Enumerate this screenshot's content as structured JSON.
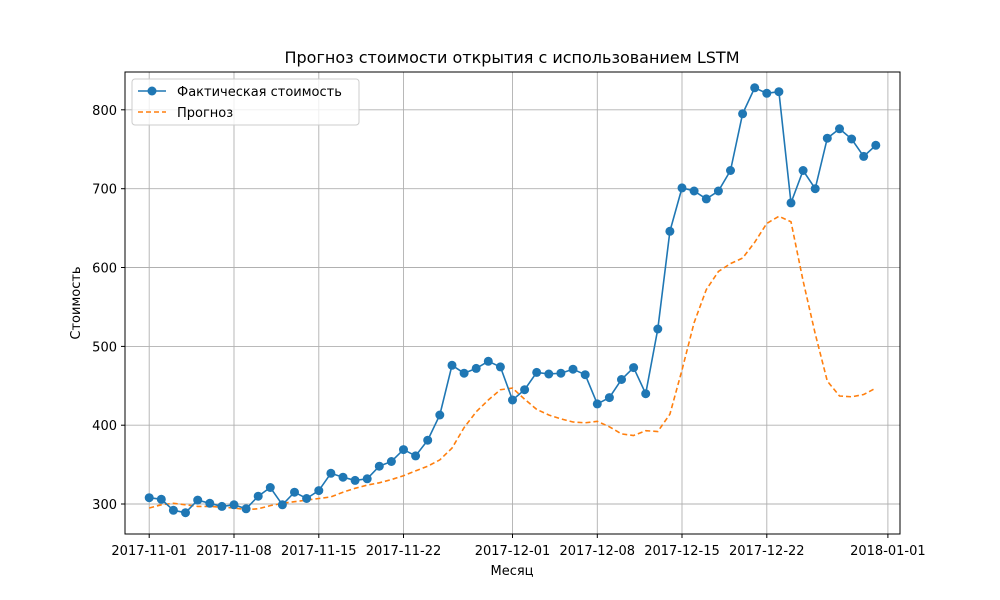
{
  "chart_data": {
    "type": "line",
    "title": "Прогноз стоимости открытия с использованием LSTM",
    "xlabel": "Месяц",
    "ylabel": "Стоимость",
    "grid": true,
    "legend_position": "top-left",
    "xlim": [
      "2017-10-30",
      "2018-01-02"
    ],
    "ylim": [
      262,
      848
    ],
    "x_ticks": [
      "2017-11-01",
      "2017-11-08",
      "2017-11-15",
      "2017-11-22",
      "2017-12-01",
      "2017-12-08",
      "2017-12-15",
      "2017-12-22",
      "2018-01-01"
    ],
    "y_ticks": [
      300,
      400,
      500,
      600,
      700,
      800
    ],
    "series": [
      {
        "name": "Фактическая стоимость",
        "color": "#1f77b4",
        "style": "solid-marker",
        "points": [
          [
            "2017-11-01",
            308
          ],
          [
            "2017-11-02",
            306
          ],
          [
            "2017-11-03",
            292
          ],
          [
            "2017-11-04",
            289
          ],
          [
            "2017-11-05",
            305
          ],
          [
            "2017-11-06",
            301
          ],
          [
            "2017-11-07",
            297
          ],
          [
            "2017-11-08",
            299
          ],
          [
            "2017-11-09",
            294
          ],
          [
            "2017-11-10",
            310
          ],
          [
            "2017-11-11",
            321
          ],
          [
            "2017-11-12",
            299
          ],
          [
            "2017-11-13",
            315
          ],
          [
            "2017-11-14",
            307
          ],
          [
            "2017-11-15",
            317
          ],
          [
            "2017-11-16",
            339
          ],
          [
            "2017-11-17",
            334
          ],
          [
            "2017-11-18",
            330
          ],
          [
            "2017-11-19",
            332
          ],
          [
            "2017-11-20",
            348
          ],
          [
            "2017-11-21",
            354
          ],
          [
            "2017-11-22",
            369
          ],
          [
            "2017-11-23",
            361
          ],
          [
            "2017-11-24",
            381
          ],
          [
            "2017-11-25",
            413
          ],
          [
            "2017-11-26",
            476
          ],
          [
            "2017-11-27",
            466
          ],
          [
            "2017-11-28",
            472
          ],
          [
            "2017-11-29",
            481
          ],
          [
            "2017-11-30",
            474
          ],
          [
            "2017-12-01",
            432
          ],
          [
            "2017-12-02",
            445
          ],
          [
            "2017-12-03",
            467
          ],
          [
            "2017-12-04",
            465
          ],
          [
            "2017-12-05",
            466
          ],
          [
            "2017-12-06",
            471
          ],
          [
            "2017-12-07",
            464
          ],
          [
            "2017-12-08",
            427
          ],
          [
            "2017-12-09",
            435
          ],
          [
            "2017-12-10",
            458
          ],
          [
            "2017-12-11",
            473
          ],
          [
            "2017-12-12",
            440
          ],
          [
            "2017-12-13",
            522
          ],
          [
            "2017-12-14",
            646
          ],
          [
            "2017-12-15",
            701
          ],
          [
            "2017-12-16",
            697
          ],
          [
            "2017-12-17",
            687
          ],
          [
            "2017-12-18",
            697
          ],
          [
            "2017-12-19",
            723
          ],
          [
            "2017-12-20",
            795
          ],
          [
            "2017-12-21",
            828
          ],
          [
            "2017-12-22",
            821
          ],
          [
            "2017-12-23",
            823
          ],
          [
            "2017-12-24",
            682
          ],
          [
            "2017-12-25",
            723
          ],
          [
            "2017-12-26",
            700
          ],
          [
            "2017-12-27",
            764
          ],
          [
            "2017-12-28",
            776
          ],
          [
            "2017-12-29",
            763
          ],
          [
            "2017-12-30",
            741
          ],
          [
            "2017-12-31",
            755
          ]
        ]
      },
      {
        "name": "Прогноз",
        "color": "#ff7f0e",
        "style": "dashed",
        "points": [
          [
            "2017-11-01",
            295
          ],
          [
            "2017-11-02",
            299
          ],
          [
            "2017-11-03",
            301
          ],
          [
            "2017-11-04",
            299
          ],
          [
            "2017-11-05",
            297
          ],
          [
            "2017-11-06",
            297
          ],
          [
            "2017-11-07",
            296
          ],
          [
            "2017-11-08",
            295
          ],
          [
            "2017-11-09",
            293
          ],
          [
            "2017-11-10",
            294
          ],
          [
            "2017-11-11",
            298
          ],
          [
            "2017-11-12",
            301
          ],
          [
            "2017-11-13",
            303
          ],
          [
            "2017-11-14",
            305
          ],
          [
            "2017-11-15",
            307
          ],
          [
            "2017-11-16",
            309
          ],
          [
            "2017-11-17",
            315
          ],
          [
            "2017-11-18",
            320
          ],
          [
            "2017-11-19",
            324
          ],
          [
            "2017-11-20",
            327
          ],
          [
            "2017-11-21",
            331
          ],
          [
            "2017-11-22",
            336
          ],
          [
            "2017-11-23",
            342
          ],
          [
            "2017-11-24",
            348
          ],
          [
            "2017-11-25",
            356
          ],
          [
            "2017-11-26",
            371
          ],
          [
            "2017-11-27",
            397
          ],
          [
            "2017-11-28",
            417
          ],
          [
            "2017-11-29",
            432
          ],
          [
            "2017-11-30",
            445
          ],
          [
            "2017-12-01",
            447
          ],
          [
            "2017-12-02",
            433
          ],
          [
            "2017-12-03",
            420
          ],
          [
            "2017-12-04",
            413
          ],
          [
            "2017-12-05",
            408
          ],
          [
            "2017-12-06",
            404
          ],
          [
            "2017-12-07",
            403
          ],
          [
            "2017-12-08",
            405
          ],
          [
            "2017-12-09",
            398
          ],
          [
            "2017-12-10",
            389
          ],
          [
            "2017-12-11",
            387
          ],
          [
            "2017-12-12",
            393
          ],
          [
            "2017-12-13",
            392
          ],
          [
            "2017-12-14",
            414
          ],
          [
            "2017-12-15",
            470
          ],
          [
            "2017-12-16",
            530
          ],
          [
            "2017-12-17",
            572
          ],
          [
            "2017-12-18",
            595
          ],
          [
            "2017-12-19",
            605
          ],
          [
            "2017-12-20",
            612
          ],
          [
            "2017-12-21",
            632
          ],
          [
            "2017-12-22",
            656
          ],
          [
            "2017-12-23",
            665
          ],
          [
            "2017-12-24",
            658
          ],
          [
            "2017-12-25",
            583
          ],
          [
            "2017-12-26",
            516
          ],
          [
            "2017-12-27",
            456
          ],
          [
            "2017-12-28",
            437
          ],
          [
            "2017-12-29",
            436
          ],
          [
            "2017-12-30",
            439
          ],
          [
            "2017-12-31",
            447
          ]
        ]
      }
    ]
  }
}
